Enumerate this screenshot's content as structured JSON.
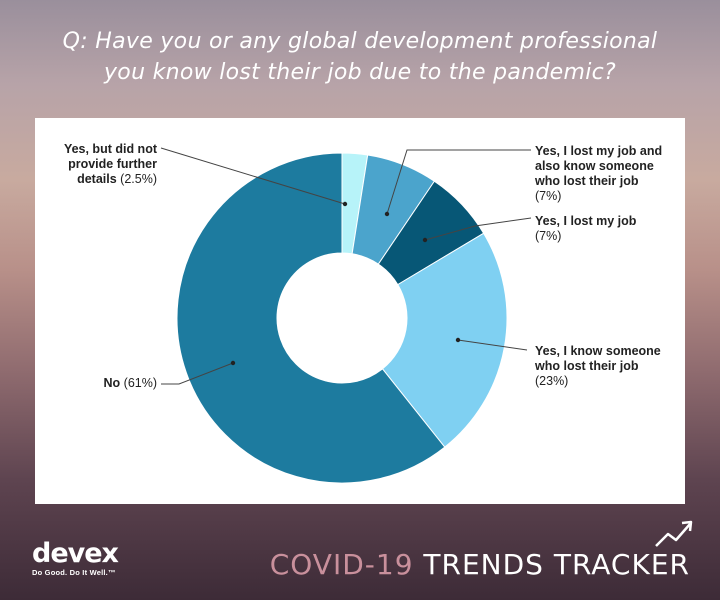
{
  "question": {
    "line1": "Q: Have you or any global development professional",
    "line2": "you know lost their job due to the pandemic?"
  },
  "chart_data": {
    "type": "pie",
    "donut": true,
    "title": "Q: Have you or any global development professional you know lost their job due to the pandemic?",
    "slices": [
      {
        "label": "Yes, but did not provide further details",
        "value": 2.5,
        "pct_label": "(2.5%)",
        "color": "#b7f3f9"
      },
      {
        "label": "Yes, I lost my job and also know someone who lost their job",
        "value": 7,
        "pct_label": "(7%)",
        "color": "#4ba4cc"
      },
      {
        "label": "Yes, I lost my job",
        "value": 7,
        "pct_label": "(7%)",
        "color": "#075776"
      },
      {
        "label": "Yes, I know someone who lost their job",
        "value": 23,
        "pct_label": "(23%)",
        "color": "#7fd0f2"
      },
      {
        "label": "No",
        "value": 61,
        "pct_label": "(61%)",
        "color": "#1d7b9f"
      }
    ]
  },
  "labels": {
    "details": {
      "l1": "Yes, but did not",
      "l2": "provide further",
      "l3": "details",
      "pct": "(2.5%)"
    },
    "both": {
      "l1": "Yes, I lost my job and",
      "l2": "also know someone",
      "l3": "who lost their job",
      "pct": "(7%)"
    },
    "lost": {
      "l1": "Yes, I lost my job",
      "pct": "(7%)"
    },
    "know": {
      "l1": "Yes, I know someone",
      "l2": "who lost their job",
      "pct": "(23%)"
    },
    "no": {
      "l1": "No",
      "pct": "(61%)"
    }
  },
  "footer": {
    "brand": "devex",
    "tagline": "Do Good. Do It Well.™",
    "tracker_a": "COVID-19",
    "tracker_b": " TRENDS TRACKER",
    "trend_icon": "trend-up-arrow-icon"
  }
}
